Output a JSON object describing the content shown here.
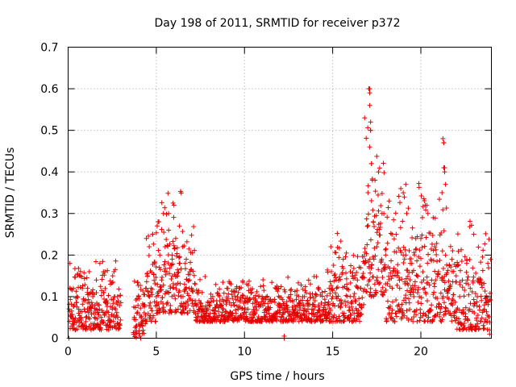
{
  "chart_data": {
    "type": "scatter",
    "title": "Day 198 of 2011, SRMTID for receiver p372",
    "xlabel": "GPS time / hours",
    "ylabel": "SRMTID / TECUs",
    "xlim": [
      0,
      24
    ],
    "ylim": [
      0,
      0.7
    ],
    "xticks": [
      0,
      5,
      10,
      15,
      20
    ],
    "yticks": [
      0,
      0.1,
      0.2,
      0.3,
      0.4,
      0.5,
      0.6,
      0.7
    ],
    "xtick_labels": [
      "0",
      "5",
      "10",
      "15",
      "20"
    ],
    "ytick_labels": [
      "0",
      "0.1",
      "0.2",
      "0.3",
      "0.4",
      "0.5",
      "0.6",
      "0.7"
    ],
    "grid": true,
    "marker": "+",
    "series": [
      {
        "name": "SRMTID",
        "color": "#e60000",
        "x": [
          0.1,
          0.2,
          0.3,
          0.35,
          0.4,
          0.5,
          0.6,
          0.7,
          0.8,
          0.9,
          1.0,
          1.1,
          1.2,
          1.3,
          1.4,
          1.5,
          1.6,
          1.7,
          1.8,
          1.9,
          2.0,
          2.1,
          2.2,
          2.3,
          2.4,
          2.5,
          2.6,
          2.7,
          2.8,
          3.8,
          3.9,
          4.0,
          4.1,
          4.2,
          4.3,
          4.5,
          4.6,
          4.7,
          4.8,
          4.9,
          5.0,
          5.1,
          5.2,
          5.3,
          5.4,
          5.5,
          5.6,
          5.7,
          5.8,
          5.9,
          6.0,
          6.1,
          6.2,
          6.3,
          6.4,
          6.5,
          6.6,
          6.7,
          6.8,
          6.9,
          7.0,
          7.2,
          7.4,
          7.6,
          7.8,
          8.0,
          8.2,
          8.4,
          8.6,
          8.8,
          9.0,
          9.2,
          9.4,
          9.6,
          9.8,
          10.0,
          10.2,
          10.4,
          10.6,
          10.8,
          11.0,
          11.2,
          11.4,
          11.6,
          11.8,
          12.0,
          12.2,
          12.4,
          12.6,
          12.8,
          13.0,
          13.2,
          13.4,
          13.6,
          13.8,
          14.0,
          14.2,
          14.4,
          14.6,
          14.8,
          14.9,
          15.0,
          15.2,
          15.4,
          15.6,
          15.8,
          16.0,
          16.2,
          16.4,
          16.6,
          16.8,
          17.0,
          17.1,
          17.15,
          17.2,
          17.3,
          17.4,
          17.5,
          17.6,
          17.8,
          18.0,
          18.2,
          18.4,
          18.6,
          18.8,
          19.0,
          19.2,
          19.4,
          19.6,
          19.8,
          20.0,
          20.2,
          20.4,
          20.6,
          20.8,
          21.0,
          21.2,
          21.3,
          21.35,
          21.4,
          21.6,
          21.8,
          22.0,
          22.2,
          22.4,
          22.6,
          22.8,
          23.0,
          23.2,
          23.4,
          23.6,
          23.8
        ],
        "y": [
          0.18,
          0.05,
          0.12,
          0.08,
          0.02,
          0.1,
          0.06,
          0.15,
          0.03,
          0.09,
          0.04,
          0.12,
          0.07,
          0.02,
          0.1,
          0.05,
          0.14,
          0.08,
          0.18,
          0.04,
          0.11,
          0.06,
          0.09,
          0.02,
          0.13,
          0.07,
          0.16,
          0.05,
          0.1,
          0.01,
          0.06,
          0.1,
          0.03,
          0.04,
          0.08,
          0.15,
          0.22,
          0.12,
          0.25,
          0.18,
          0.1,
          0.28,
          0.2,
          0.14,
          0.3,
          0.22,
          0.16,
          0.26,
          0.12,
          0.2,
          0.32,
          0.24,
          0.15,
          0.18,
          0.1,
          0.22,
          0.13,
          0.19,
          0.08,
          0.16,
          0.12,
          0.09,
          0.07,
          0.11,
          0.06,
          0.08,
          0.1,
          0.05,
          0.09,
          0.07,
          0.12,
          0.06,
          0.08,
          0.1,
          0.05,
          0.09,
          0.07,
          0.11,
          0.06,
          0.08,
          0.1,
          0.05,
          0.07,
          0.09,
          0.06,
          0.08,
          0.04,
          0.07,
          0.09,
          0.06,
          0.08,
          0.05,
          0.1,
          0.07,
          0.06,
          0.09,
          0.08,
          0.11,
          0.07,
          0.12,
          0.22,
          0.1,
          0.14,
          0.09,
          0.19,
          0.12,
          0.16,
          0.1,
          0.14,
          0.12,
          0.18,
          0.35,
          0.6,
          0.5,
          0.42,
          0.28,
          0.38,
          0.22,
          0.4,
          0.3,
          0.2,
          0.33,
          0.15,
          0.25,
          0.12,
          0.2,
          0.3,
          0.18,
          0.1,
          0.15,
          0.24,
          0.12,
          0.3,
          0.08,
          0.22,
          0.16,
          0.14,
          0.47,
          0.41,
          0.2,
          0.12,
          0.08,
          0.15,
          0.1,
          0.06,
          0.18,
          0.12,
          0.25,
          0.1,
          0.14,
          0.08,
          0.18
        ],
        "note": "approximately 2880 noisy samples; shape generated procedurally around the listed envelope"
      }
    ]
  }
}
